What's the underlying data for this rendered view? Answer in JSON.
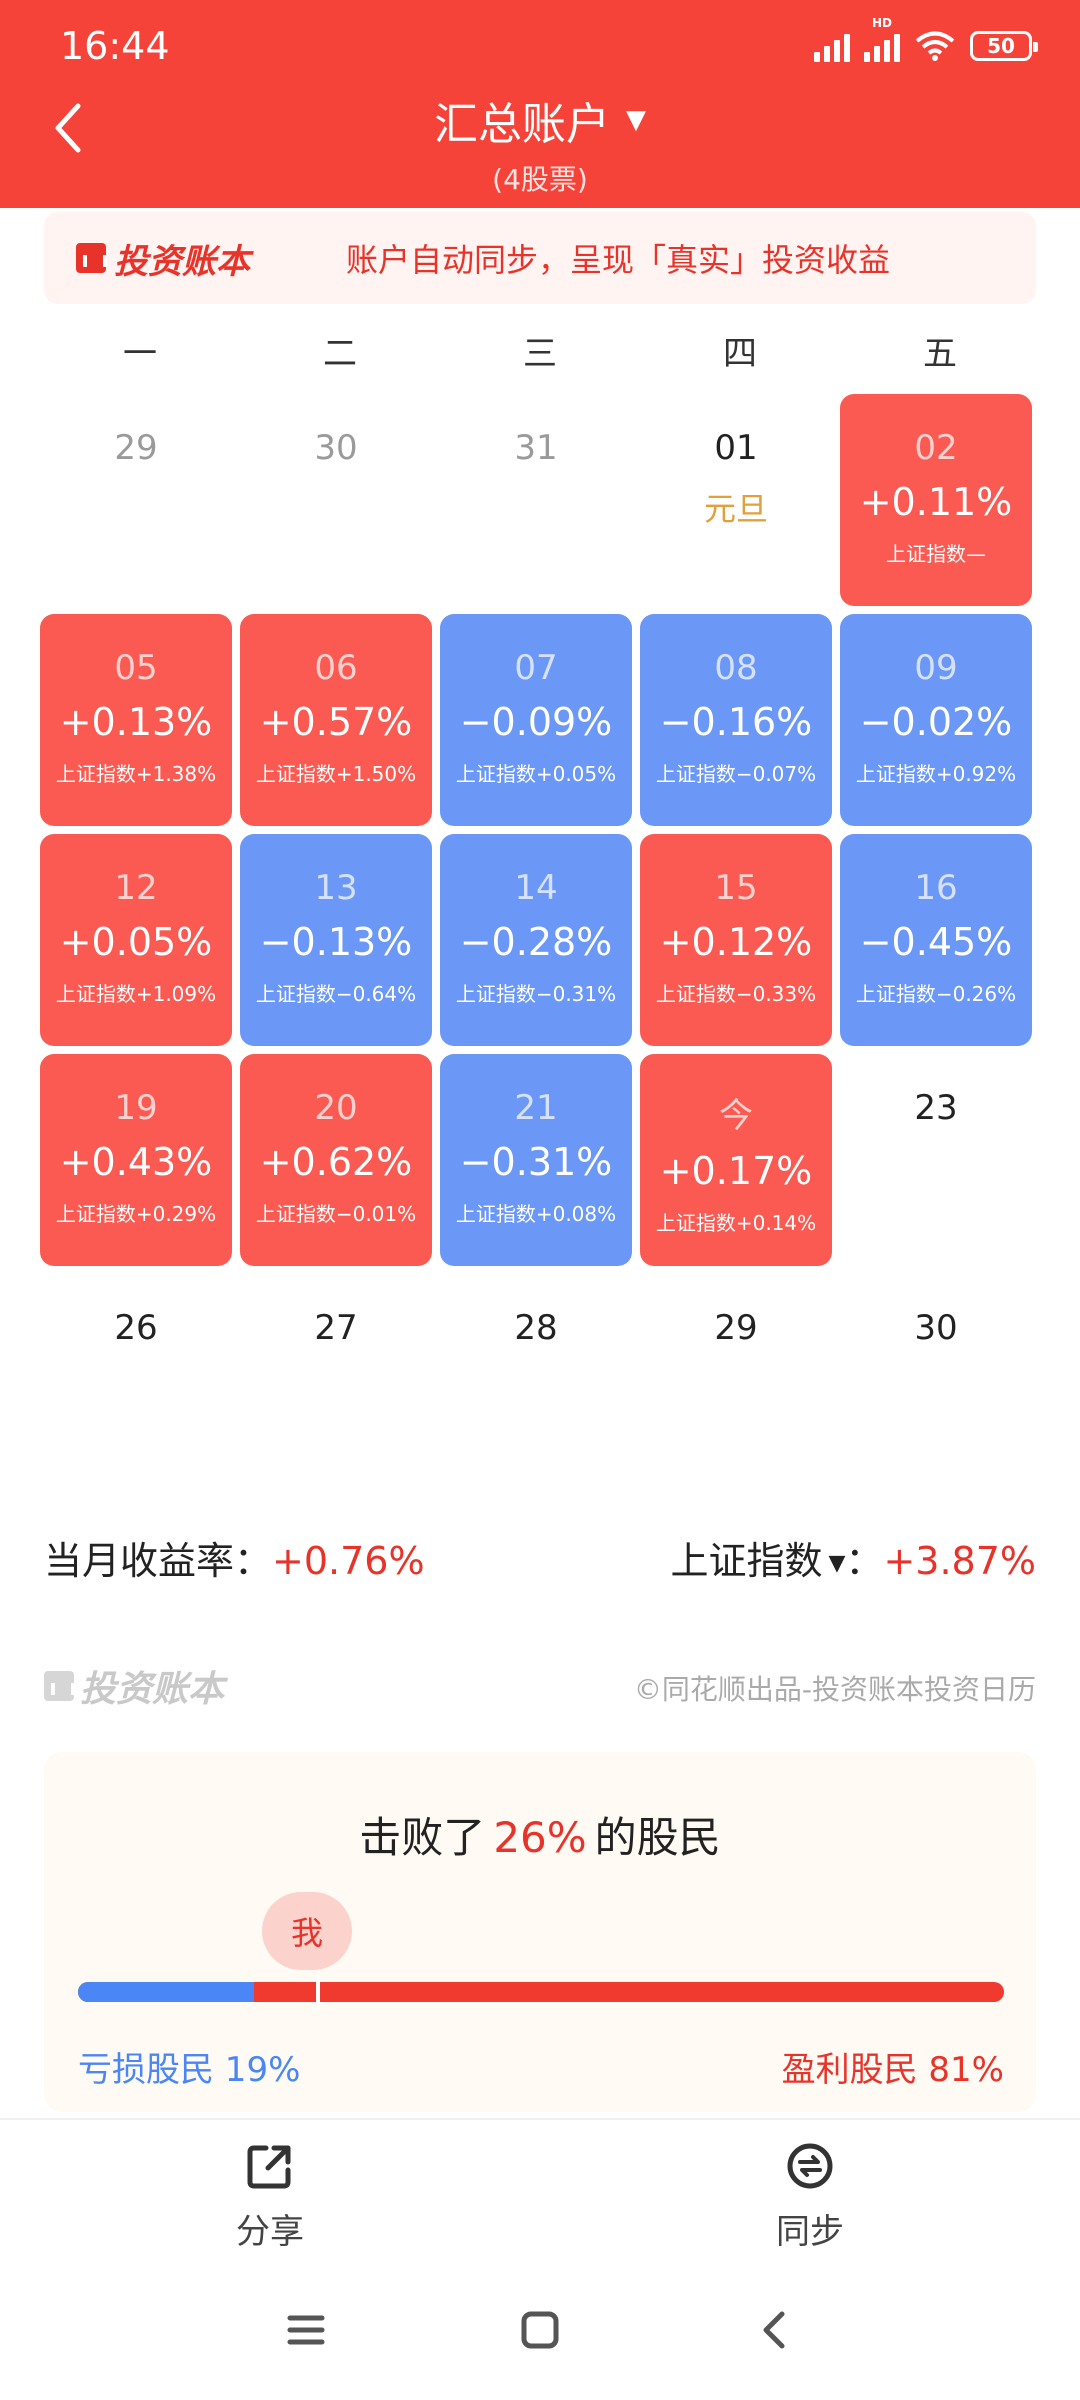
{
  "status": {
    "time": "16:44",
    "signal_badge": "HD",
    "battery": "50"
  },
  "header": {
    "title": "汇总账户",
    "subtitle": "(4股票)"
  },
  "banner": {
    "brand": "投资账本",
    "text": "账户自动同步，呈现「真实」投资收益"
  },
  "weekdays": [
    "一",
    "二",
    "三",
    "四",
    "五"
  ],
  "calendar": {
    "cells": [
      {
        "day": "29",
        "kind": "faded"
      },
      {
        "day": "30",
        "kind": "faded"
      },
      {
        "day": "31",
        "kind": "faded"
      },
      {
        "day": "01",
        "kind": "holiday",
        "holiday": "元旦"
      },
      {
        "day": "02",
        "kind": "red",
        "pct": "+0.11%",
        "idx": "上证指数—"
      },
      {
        "day": "05",
        "kind": "red",
        "pct": "+0.13%",
        "idx": "上证指数+1.38%"
      },
      {
        "day": "06",
        "kind": "red",
        "pct": "+0.57%",
        "idx": "上证指数+1.50%"
      },
      {
        "day": "07",
        "kind": "blue",
        "pct": "−0.09%",
        "idx": "上证指数+0.05%"
      },
      {
        "day": "08",
        "kind": "blue",
        "pct": "−0.16%",
        "idx": "上证指数−0.07%"
      },
      {
        "day": "09",
        "kind": "blue",
        "pct": "−0.02%",
        "idx": "上证指数+0.92%"
      },
      {
        "day": "12",
        "kind": "red",
        "pct": "+0.05%",
        "idx": "上证指数+1.09%"
      },
      {
        "day": "13",
        "kind": "blue",
        "pct": "−0.13%",
        "idx": "上证指数−0.64%"
      },
      {
        "day": "14",
        "kind": "blue",
        "pct": "−0.28%",
        "idx": "上证指数−0.31%"
      },
      {
        "day": "15",
        "kind": "red",
        "pct": "+0.12%",
        "idx": "上证指数−0.33%"
      },
      {
        "day": "16",
        "kind": "blue",
        "pct": "−0.45%",
        "idx": "上证指数−0.26%"
      },
      {
        "day": "19",
        "kind": "red",
        "pct": "+0.43%",
        "idx": "上证指数+0.29%"
      },
      {
        "day": "20",
        "kind": "red",
        "pct": "+0.62%",
        "idx": "上证指数−0.01%"
      },
      {
        "day": "21",
        "kind": "blue",
        "pct": "−0.31%",
        "idx": "上证指数+0.08%"
      },
      {
        "day": "今",
        "kind": "red",
        "pct": "+0.17%",
        "idx": "上证指数+0.14%"
      },
      {
        "day": "23",
        "kind": "plain"
      },
      {
        "day": "26",
        "kind": "plain"
      },
      {
        "day": "27",
        "kind": "plain"
      },
      {
        "day": "28",
        "kind": "plain"
      },
      {
        "day": "29",
        "kind": "plain"
      },
      {
        "day": "30",
        "kind": "plain"
      }
    ]
  },
  "summary": {
    "month_label": "当月收益率：",
    "month_value": "+0.76%",
    "index_label": "上证指数",
    "index_colon": "：",
    "index_value": "+3.87%"
  },
  "footer": {
    "brand": "投资账本",
    "credit": "©同花顺出品-投资账本投资日历"
  },
  "rank": {
    "prefix": "击败了",
    "percent": "26%",
    "suffix": "的股民",
    "me": "我",
    "loss_label": "亏损股民 19%",
    "gain_label": "盈利股民 81%",
    "loss_fraction": 0.19,
    "me_fraction": 0.26
  },
  "actions": {
    "share": "分享",
    "sync": "同步"
  },
  "colors": {
    "header": "#f5433a",
    "gain": "#fa5a52",
    "loss": "#6b98f7",
    "accent": "#e8332a"
  },
  "icons": [
    "chevron-left-icon",
    "caret-down-icon",
    "share-icon",
    "sync-icon",
    "menu-icon",
    "home-icon",
    "back-icon"
  ]
}
